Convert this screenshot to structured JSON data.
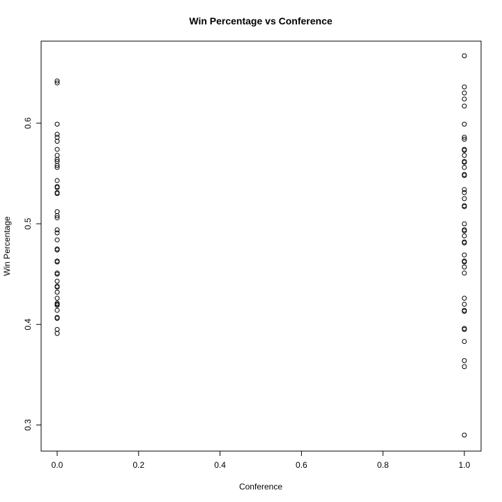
{
  "chart_data": {
    "type": "scatter",
    "title": "Win Percentage vs Conference",
    "xlabel": "Conference",
    "ylabel": "Win Percentage",
    "xlim": [
      0,
      1
    ],
    "ylim": [
      0.29,
      0.667
    ],
    "x_ticks": [
      {
        "value": 0.0,
        "label": "0.0"
      },
      {
        "value": 0.2,
        "label": "0.2"
      },
      {
        "value": 0.4,
        "label": "0.4"
      },
      {
        "value": 0.6,
        "label": "0.6"
      },
      {
        "value": 0.8,
        "label": "0.8"
      },
      {
        "value": 1.0,
        "label": "1.0"
      }
    ],
    "y_ticks": [
      {
        "value": 0.3,
        "label": "0.3"
      },
      {
        "value": 0.4,
        "label": "0.4"
      },
      {
        "value": 0.5,
        "label": "0.5"
      },
      {
        "value": 0.6,
        "label": "0.6"
      }
    ],
    "grid": false,
    "legend": "none",
    "points": [
      {
        "x": 0,
        "y": 0.642
      },
      {
        "x": 0,
        "y": 0.64
      },
      {
        "x": 0,
        "y": 0.599
      },
      {
        "x": 0,
        "y": 0.589
      },
      {
        "x": 0,
        "y": 0.586
      },
      {
        "x": 0,
        "y": 0.582
      },
      {
        "x": 0,
        "y": 0.574
      },
      {
        "x": 0,
        "y": 0.568
      },
      {
        "x": 0,
        "y": 0.564
      },
      {
        "x": 0,
        "y": 0.562
      },
      {
        "x": 0,
        "y": 0.558
      },
      {
        "x": 0,
        "y": 0.556
      },
      {
        "x": 0,
        "y": 0.543
      },
      {
        "x": 0,
        "y": 0.537
      },
      {
        "x": 0,
        "y": 0.536
      },
      {
        "x": 0,
        "y": 0.531
      },
      {
        "x": 0,
        "y": 0.53
      },
      {
        "x": 0,
        "y": 0.512
      },
      {
        "x": 0,
        "y": 0.508
      },
      {
        "x": 0,
        "y": 0.506
      },
      {
        "x": 0,
        "y": 0.494
      },
      {
        "x": 0,
        "y": 0.491
      },
      {
        "x": 0,
        "y": 0.484
      },
      {
        "x": 0,
        "y": 0.475
      },
      {
        "x": 0,
        "y": 0.474
      },
      {
        "x": 0,
        "y": 0.463
      },
      {
        "x": 0,
        "y": 0.462
      },
      {
        "x": 0,
        "y": 0.451
      },
      {
        "x": 0,
        "y": 0.45
      },
      {
        "x": 0,
        "y": 0.443
      },
      {
        "x": 0,
        "y": 0.438
      },
      {
        "x": 0,
        "y": 0.437
      },
      {
        "x": 0,
        "y": 0.432
      },
      {
        "x": 0,
        "y": 0.426
      },
      {
        "x": 0,
        "y": 0.421
      },
      {
        "x": 0,
        "y": 0.42
      },
      {
        "x": 0,
        "y": 0.419
      },
      {
        "x": 0,
        "y": 0.414
      },
      {
        "x": 0,
        "y": 0.407
      },
      {
        "x": 0,
        "y": 0.406
      },
      {
        "x": 0,
        "y": 0.395
      },
      {
        "x": 0,
        "y": 0.391
      },
      {
        "x": 1,
        "y": 0.667
      },
      {
        "x": 1,
        "y": 0.636
      },
      {
        "x": 1,
        "y": 0.63
      },
      {
        "x": 1,
        "y": 0.624
      },
      {
        "x": 1,
        "y": 0.617
      },
      {
        "x": 1,
        "y": 0.599
      },
      {
        "x": 1,
        "y": 0.586
      },
      {
        "x": 1,
        "y": 0.584
      },
      {
        "x": 1,
        "y": 0.574
      },
      {
        "x": 1,
        "y": 0.573
      },
      {
        "x": 1,
        "y": 0.568
      },
      {
        "x": 1,
        "y": 0.562
      },
      {
        "x": 1,
        "y": 0.561
      },
      {
        "x": 1,
        "y": 0.556
      },
      {
        "x": 1,
        "y": 0.549
      },
      {
        "x": 1,
        "y": 0.548
      },
      {
        "x": 1,
        "y": 0.534
      },
      {
        "x": 1,
        "y": 0.531
      },
      {
        "x": 1,
        "y": 0.525
      },
      {
        "x": 1,
        "y": 0.518
      },
      {
        "x": 1,
        "y": 0.517
      },
      {
        "x": 1,
        "y": 0.5
      },
      {
        "x": 1,
        "y": 0.494
      },
      {
        "x": 1,
        "y": 0.493
      },
      {
        "x": 1,
        "y": 0.488
      },
      {
        "x": 1,
        "y": 0.482
      },
      {
        "x": 1,
        "y": 0.481
      },
      {
        "x": 1,
        "y": 0.469
      },
      {
        "x": 1,
        "y": 0.463
      },
      {
        "x": 1,
        "y": 0.462
      },
      {
        "x": 1,
        "y": 0.457
      },
      {
        "x": 1,
        "y": 0.451
      },
      {
        "x": 1,
        "y": 0.426
      },
      {
        "x": 1,
        "y": 0.42
      },
      {
        "x": 1,
        "y": 0.414
      },
      {
        "x": 1,
        "y": 0.413
      },
      {
        "x": 1,
        "y": 0.396
      },
      {
        "x": 1,
        "y": 0.395
      },
      {
        "x": 1,
        "y": 0.383
      },
      {
        "x": 1,
        "y": 0.364
      },
      {
        "x": 1,
        "y": 0.358
      },
      {
        "x": 1,
        "y": 0.29
      }
    ]
  }
}
